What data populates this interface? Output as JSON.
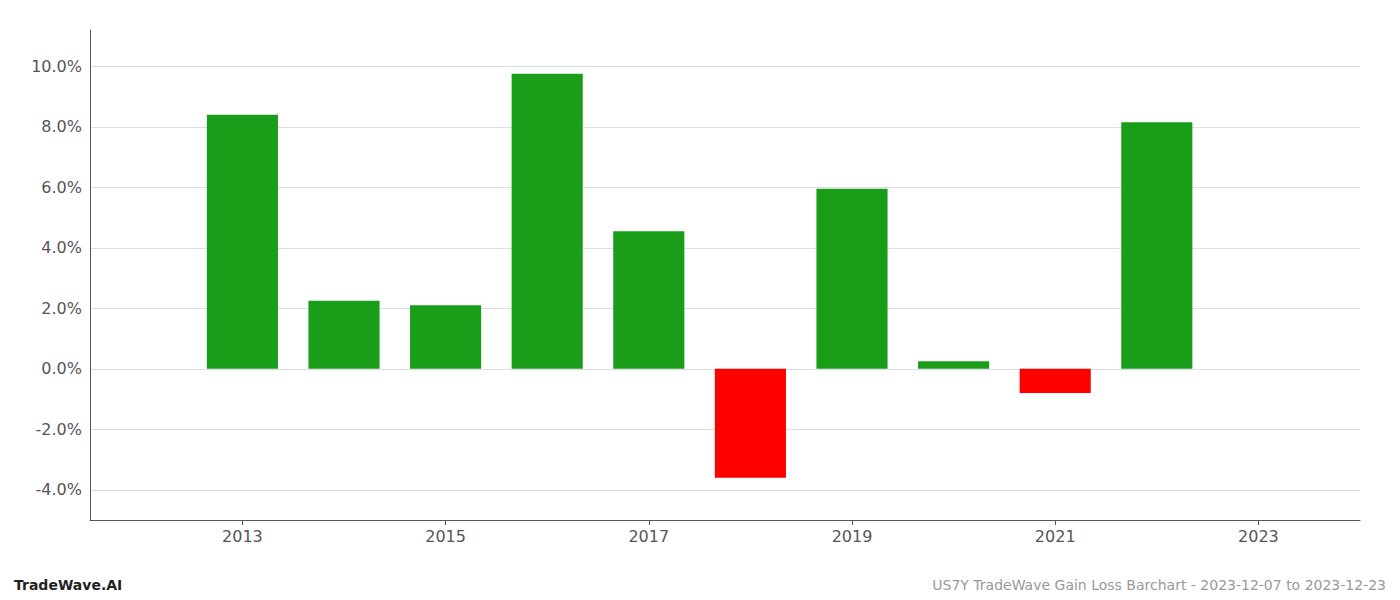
{
  "chart_data": {
    "type": "bar",
    "x": [
      2013,
      2014,
      2015,
      2016,
      2017,
      2018,
      2019,
      2020,
      2021,
      2022
    ],
    "values": [
      0.084,
      0.0225,
      0.021,
      0.0975,
      0.0455,
      -0.036,
      0.0595,
      0.0025,
      -0.008,
      0.0815
    ],
    "colors": [
      "#1a9e1a",
      "#1a9e1a",
      "#1a9e1a",
      "#1a9e1a",
      "#1a9e1a",
      "#ff0000",
      "#1a9e1a",
      "#1a9e1a",
      "#ff0000",
      "#1a9e1a"
    ],
    "xlim": [
      2011.5,
      2024.0
    ],
    "xticks": [
      2013,
      2015,
      2017,
      2019,
      2021,
      2023
    ],
    "ylim": [
      -0.05,
      0.112
    ],
    "yticks": [
      {
        "value": -0.04,
        "label": "-4.0%"
      },
      {
        "value": -0.02,
        "label": "-2.0%"
      },
      {
        "value": 0.0,
        "label": "0.0%"
      },
      {
        "value": 0.02,
        "label": "2.0%"
      },
      {
        "value": 0.04,
        "label": "4.0%"
      },
      {
        "value": 0.06,
        "label": "6.0%"
      },
      {
        "value": 0.08,
        "label": "8.0%"
      },
      {
        "value": 0.1,
        "label": "10.0%"
      }
    ],
    "grid": true,
    "annotations": [
      "TradeWave.AI",
      "US7Y TradeWave Gain Loss Barchart - 2023-12-07 to 2023-12-23"
    ]
  }
}
